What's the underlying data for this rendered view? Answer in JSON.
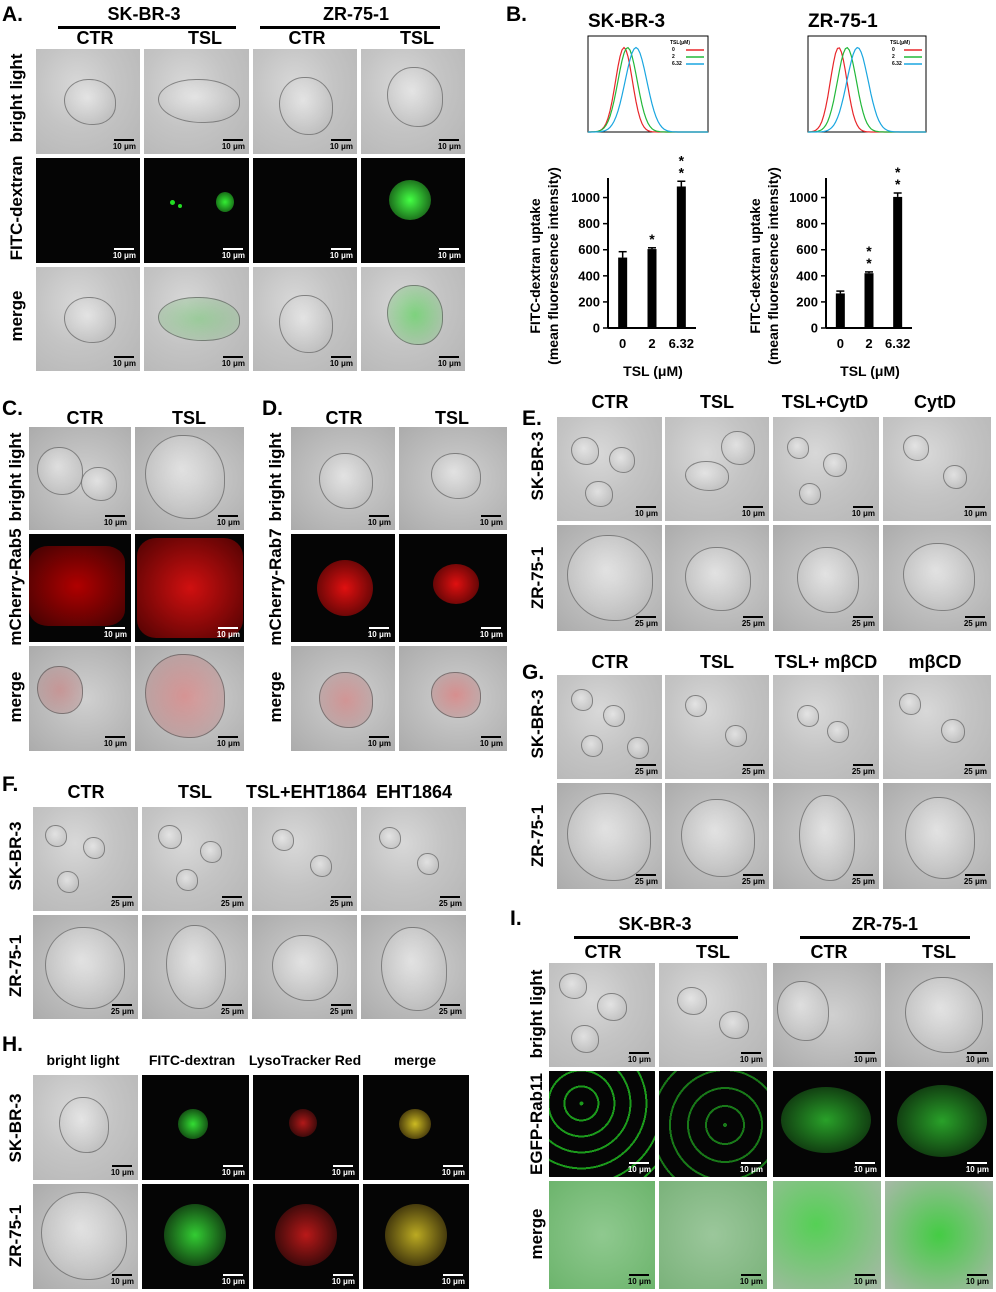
{
  "panels": {
    "A": {
      "label": "A.",
      "cell_lines": [
        "SK-BR-3",
        "ZR-75-1"
      ],
      "conditions": [
        "CTR",
        "TSL",
        "CTR",
        "TSL"
      ],
      "rows": [
        "bright light",
        "FITC-dextran",
        "merge"
      ],
      "scale": "10 μm"
    },
    "B": {
      "label": "B.",
      "titles": [
        "SK-BR-3",
        "ZR-75-1"
      ],
      "ylabel_1": "FITC-dextran uptake",
      "ylabel_2": "(mean  fluorescence intensity)",
      "xlabel": "TSL (μM)",
      "legend_title": "TSL(μM)",
      "legend_items": [
        "0",
        "2",
        "6.32"
      ],
      "star": "*"
    },
    "C": {
      "label": "C.",
      "conditions": [
        "CTR",
        "TSL"
      ],
      "rows": [
        "bright light",
        "mCherry-Rab5",
        "merge"
      ],
      "scale": "10 μm"
    },
    "D": {
      "label": "D.",
      "conditions": [
        "CTR",
        "TSL"
      ],
      "rows": [
        "bright light",
        "mCherry-Rab7",
        "merge"
      ],
      "scale": "10 μm"
    },
    "E": {
      "label": "E.",
      "conditions": [
        "CTR",
        "TSL",
        "TSL+CytD",
        "CytD"
      ],
      "rows": [
        "SK-BR-3",
        "ZR-75-1"
      ],
      "scale_1": "10 μm",
      "scale_2": "25 μm"
    },
    "F": {
      "label": "F.",
      "conditions": [
        "CTR",
        "TSL",
        "TSL+EHT1864",
        "EHT1864"
      ],
      "rows": [
        "SK-BR-3",
        "ZR-75-1"
      ],
      "scale": "25 μm"
    },
    "G": {
      "label": "G.",
      "conditions": [
        "CTR",
        "TSL",
        "TSL+ mβCD",
        "mβCD"
      ],
      "rows": [
        "SK-BR-3",
        "ZR-75-1"
      ],
      "scale": "25 μm"
    },
    "H": {
      "label": "H.",
      "conditions": [
        "bright light",
        "FITC-dextran",
        "LysoTracker Red",
        "merge"
      ],
      "rows": [
        "SK-BR-3",
        "ZR-75-1"
      ],
      "scale": "10 μm"
    },
    "I": {
      "label": "I.",
      "cell_lines": [
        "SK-BR-3",
        "ZR-75-1"
      ],
      "conditions": [
        "CTR",
        "TSL",
        "CTR",
        "TSL"
      ],
      "rows": [
        "bright light",
        "EGFP-Rab11",
        "merge"
      ],
      "scale": "10 μm"
    }
  },
  "colors": {
    "line_0": "#e8262a",
    "line_2": "#22b83a",
    "line_632": "#1aa6e0",
    "bar": "#000000",
    "fitc": "#22dd22",
    "mcherry": "#e01010"
  },
  "chart_data": [
    {
      "type": "bar",
      "title": "SK-BR-3",
      "categories": [
        "0",
        "2",
        "6.32"
      ],
      "values": [
        540,
        605,
        1085
      ],
      "errors": [
        45,
        10,
        40
      ],
      "significance": [
        "",
        "*",
        "**"
      ],
      "xlabel": "TSL (μM)",
      "ylabel": "FITC-dextran uptake (mean  fluorescence intensity)",
      "yticks": [
        0,
        200,
        400,
        600,
        800,
        1000
      ],
      "ylim": [
        0,
        1150
      ]
    },
    {
      "type": "bar",
      "title": "ZR-75-1",
      "categories": [
        "0",
        "2",
        "6.32"
      ],
      "values": [
        265,
        420,
        1005
      ],
      "errors": [
        18,
        10,
        30
      ],
      "significance": [
        "",
        "**",
        "**"
      ],
      "xlabel": "TSL (μM)",
      "ylabel": "FITC-dextran uptake (mean  fluorescence intensity)",
      "yticks": [
        0,
        200,
        400,
        600,
        800,
        1000
      ],
      "ylim": [
        0,
        1150
      ]
    }
  ]
}
